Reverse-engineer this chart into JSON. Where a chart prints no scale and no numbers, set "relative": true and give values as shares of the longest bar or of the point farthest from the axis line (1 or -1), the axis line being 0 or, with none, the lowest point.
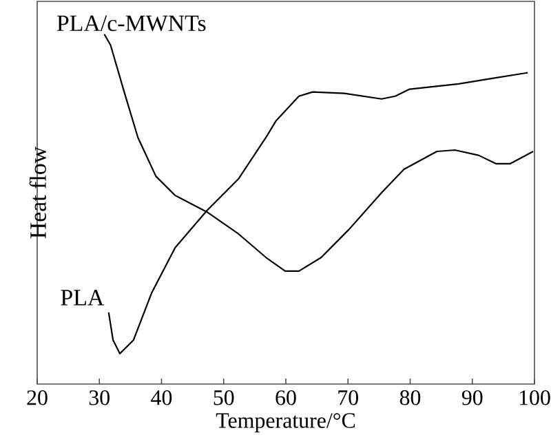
{
  "chart_data": {
    "type": "line",
    "relative": true,
    "xlabel": "Temperature/°C",
    "ylabel": "Heat flow",
    "xlim": [
      20,
      100
    ],
    "xticks": [
      20,
      30,
      40,
      50,
      60,
      70,
      80,
      90,
      100
    ],
    "grid": false,
    "marker": "none",
    "line_style": "solid",
    "series": [
      {
        "name": "PLA/c-MWNTs",
        "color": "#000000",
        "x": [
          30.8,
          31.8,
          34.0,
          36.2,
          39.1,
          42.2,
          47.3,
          52.4,
          56.8,
          59.9,
          62.1,
          65.7,
          70.1,
          75.4,
          79.0,
          84.3,
          87.2,
          91.0,
          93.8,
          96.1,
          99.8
        ],
        "values": [
          1.0,
          0.969,
          0.835,
          0.705,
          0.594,
          0.539,
          0.492,
          0.429,
          0.362,
          0.323,
          0.323,
          0.362,
          0.441,
          0.547,
          0.614,
          0.665,
          0.669,
          0.654,
          0.63,
          0.63,
          0.665
        ]
      },
      {
        "name": "PLA",
        "color": "#000000",
        "x": [
          31.5,
          32.2,
          33.3,
          35.5,
          38.4,
          42.2,
          47.3,
          52.4,
          56.8,
          58.4,
          62.1,
          64.3,
          69.4,
          75.4,
          77.6,
          79.9,
          87.8,
          93.2,
          98.9
        ],
        "values": [
          0.205,
          0.126,
          0.087,
          0.126,
          0.26,
          0.39,
          0.496,
          0.587,
          0.705,
          0.752,
          0.823,
          0.835,
          0.831,
          0.815,
          0.823,
          0.843,
          0.858,
          0.874,
          0.89
        ]
      }
    ]
  }
}
